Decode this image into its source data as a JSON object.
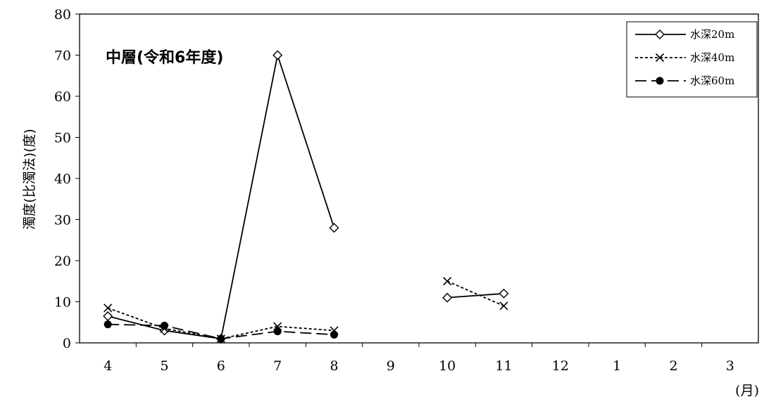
{
  "chart_data": {
    "type": "line",
    "title": "中層(令和6年度)",
    "ylabel": "濁度(比濁法)(度)",
    "xlabel": "(月)",
    "categories": [
      "4",
      "5",
      "6",
      "7",
      "8",
      "9",
      "10",
      "11",
      "12",
      "1",
      "2",
      "3"
    ],
    "ylim": [
      0,
      80
    ],
    "yticks": [
      0,
      10,
      20,
      30,
      40,
      50,
      60,
      70,
      80
    ],
    "grid": false,
    "legend_position": "top-right",
    "series": [
      {
        "name": "水深20m",
        "marker": "diamond-open",
        "line": "solid",
        "values": [
          6.5,
          3.0,
          1.0,
          70.0,
          28.0,
          null,
          11.0,
          12.0,
          null,
          null,
          null,
          null
        ]
      },
      {
        "name": "水深40m",
        "marker": "x",
        "line": "dotted",
        "values": [
          8.5,
          3.5,
          1.0,
          4.0,
          3.0,
          null,
          15.0,
          9.0,
          null,
          null,
          null,
          null
        ]
      },
      {
        "name": "水深60m",
        "marker": "circle-filled",
        "line": "dashed",
        "values": [
          4.5,
          4.2,
          1.0,
          2.8,
          2.0,
          null,
          null,
          null,
          null,
          null,
          null,
          null
        ]
      }
    ]
  }
}
